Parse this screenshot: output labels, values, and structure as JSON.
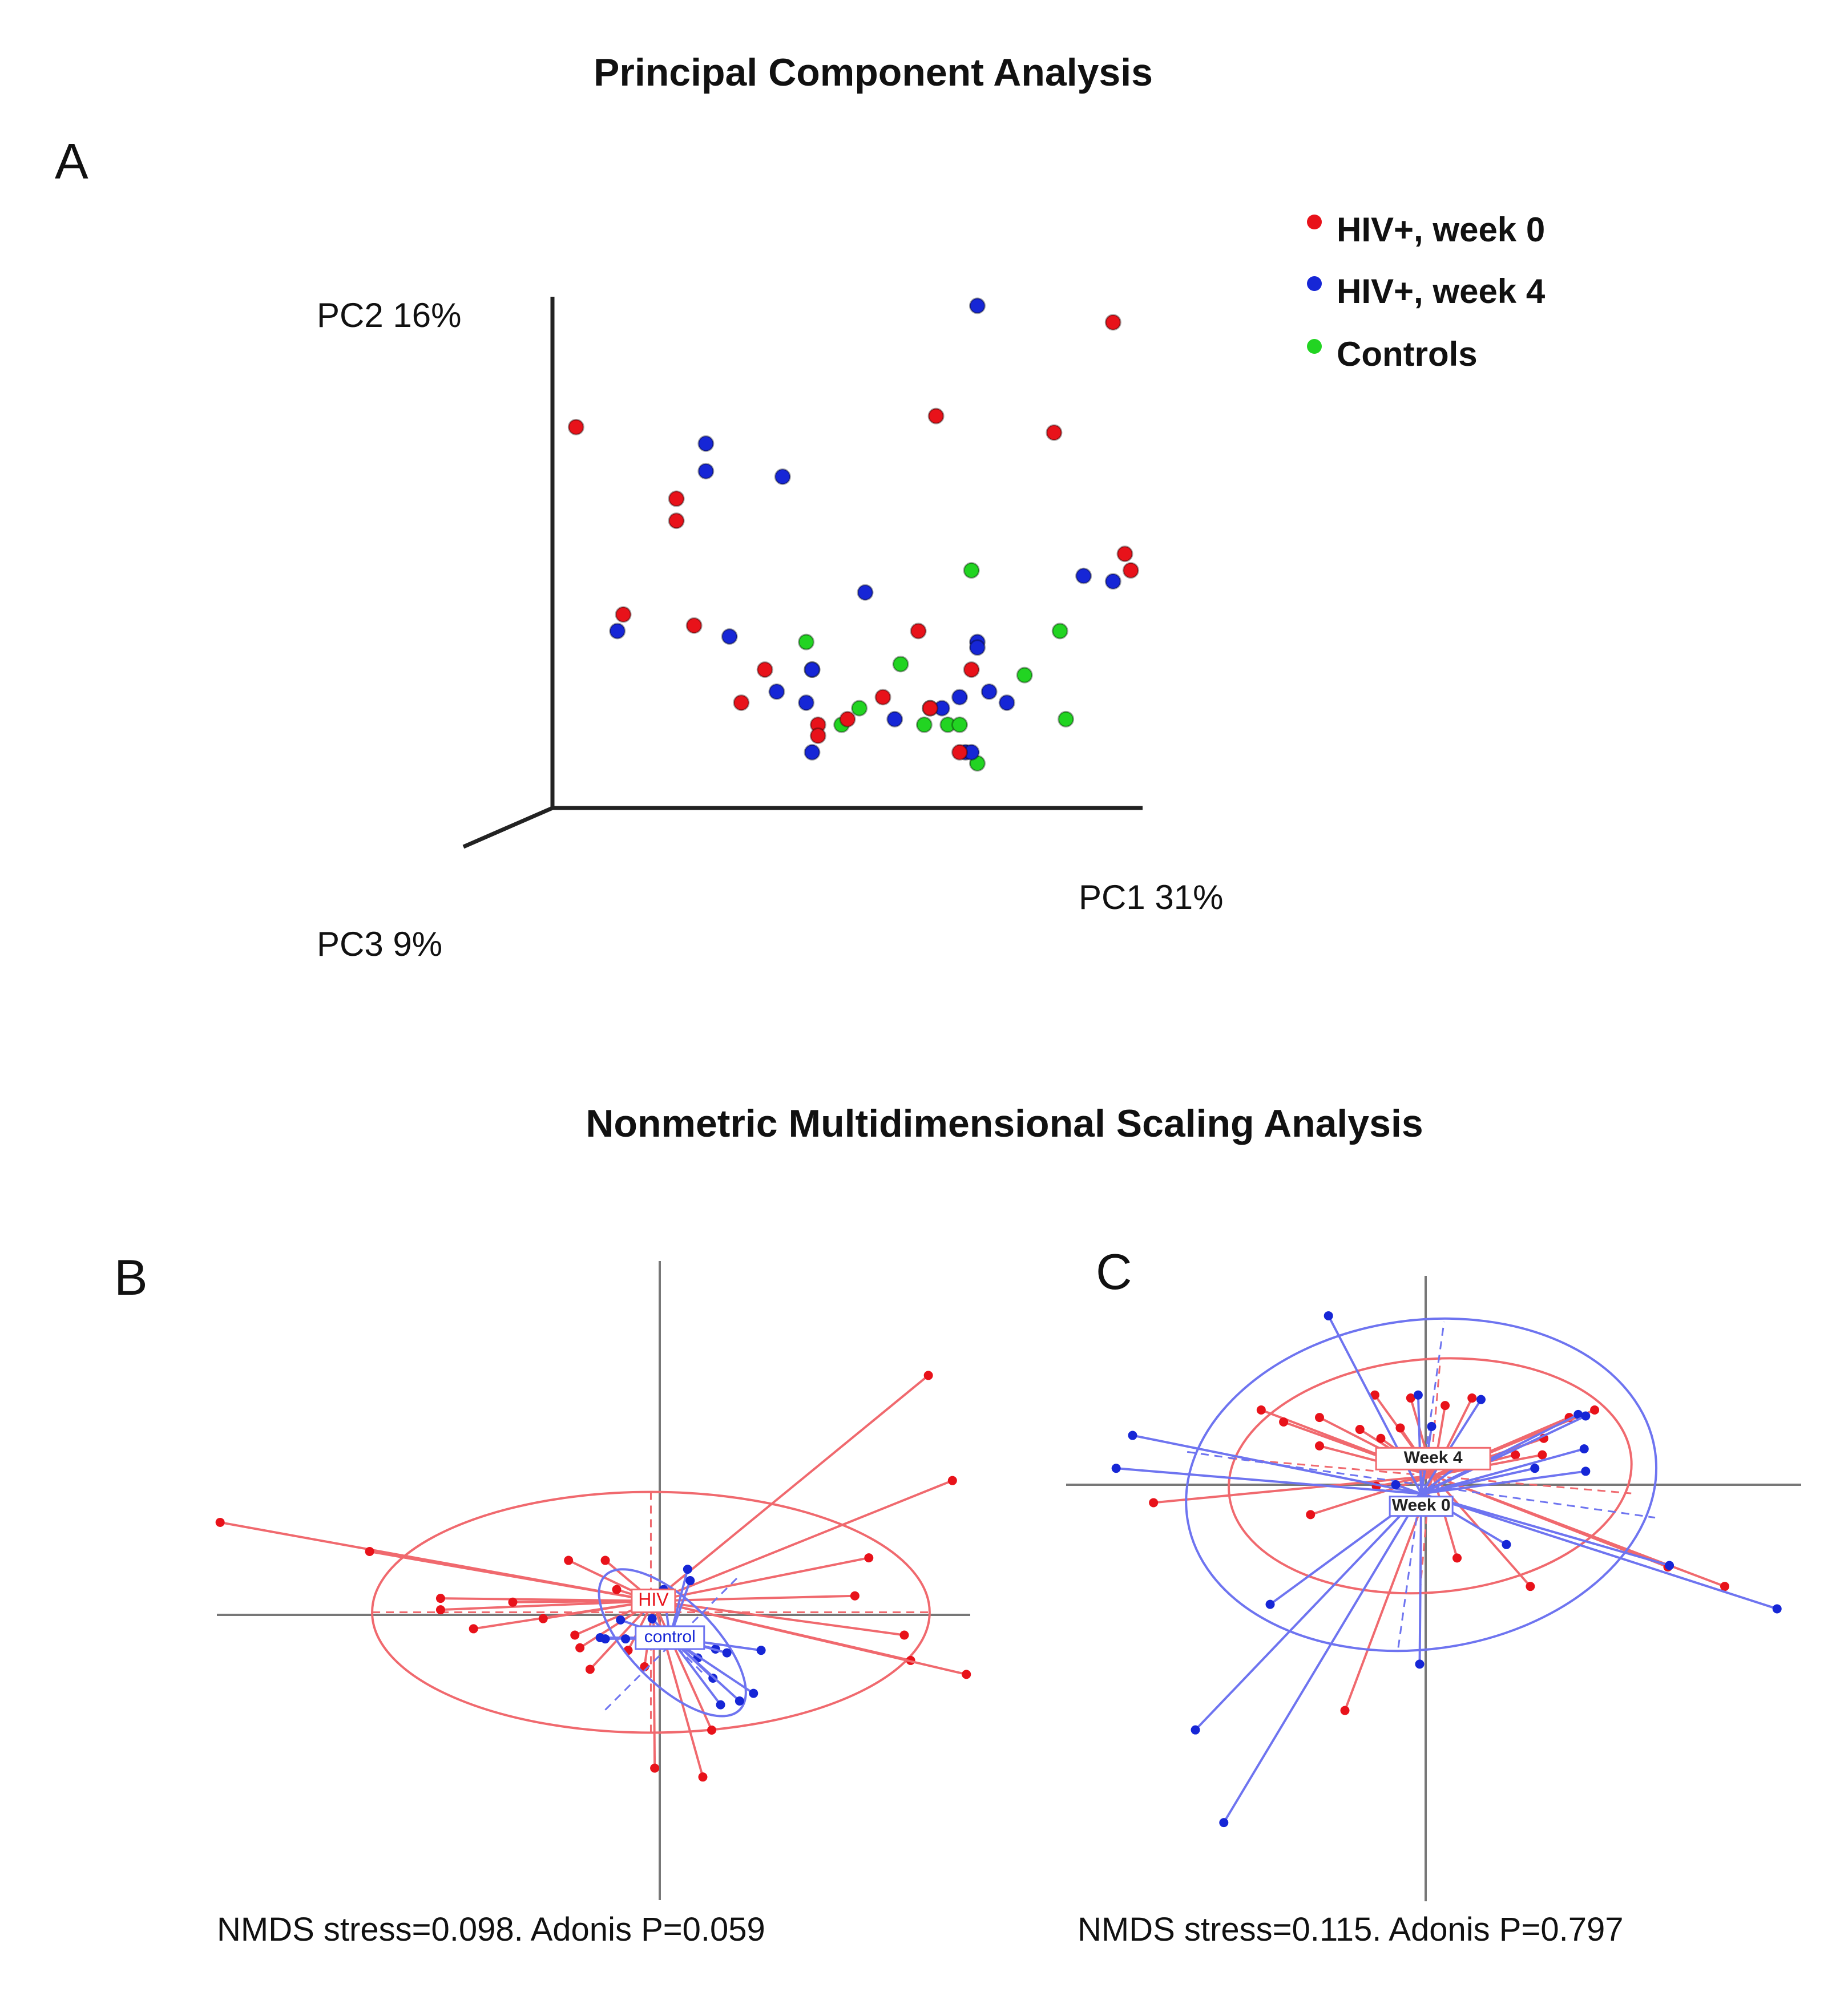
{
  "pca_title": "Principal Component Analysis",
  "nmds_title": "Nonmetric Multidimensional Scaling Analysis",
  "colors": {
    "red": "#e8121a",
    "blue": "#1626d6",
    "green": "#22d422",
    "red_line": "#f0696e",
    "blue_line": "#6e74f0"
  },
  "chart_data": [
    {
      "panel": "A",
      "type": "scatter",
      "projection": "3d",
      "title": "Principal Component Analysis",
      "axes": {
        "x": "PC1 31%",
        "y": "PC2 16%",
        "z": "PC3 9%"
      },
      "legend": [
        {
          "label": "HIV+, week 0",
          "color": "#e8121a"
        },
        {
          "label": "HIV+, week 4",
          "color": "#1626d6"
        },
        {
          "label": "Controls",
          "color": "#22d422"
        }
      ],
      "series": [
        {
          "name": "HIV+, week 0",
          "color": "#e8121a",
          "points": [
            [
              0.04,
              0.66
            ],
            [
              0.12,
              0.32
            ],
            [
              0.21,
              0.53
            ],
            [
              0.21,
              0.49
            ],
            [
              0.24,
              0.3
            ],
            [
              0.32,
              0.16
            ],
            [
              0.36,
              0.22
            ],
            [
              0.45,
              0.12
            ],
            [
              0.45,
              0.1
            ],
            [
              0.5,
              0.13
            ],
            [
              0.56,
              0.17
            ],
            [
              0.62,
              0.29
            ],
            [
              0.65,
              0.68
            ],
            [
              0.64,
              0.15
            ],
            [
              0.69,
              0.07
            ],
            [
              0.71,
              0.22
            ],
            [
              0.85,
              0.65
            ],
            [
              0.95,
              0.85
            ],
            [
              0.97,
              0.43
            ],
            [
              0.98,
              0.4
            ],
            [
              0.85,
              1.04
            ]
          ]
        },
        {
          "name": "HIV+, week 4",
          "color": "#1626d6",
          "points": [
            [
              0.11,
              0.29
            ],
            [
              0.26,
              0.63
            ],
            [
              0.26,
              0.58
            ],
            [
              0.3,
              0.28
            ],
            [
              0.38,
              0.18
            ],
            [
              0.39,
              0.57
            ],
            [
              0.44,
              0.22
            ],
            [
              0.43,
              0.16
            ],
            [
              0.44,
              0.07
            ],
            [
              0.53,
              0.36
            ],
            [
              0.58,
              0.13
            ],
            [
              0.66,
              0.15
            ],
            [
              0.69,
              0.17
            ],
            [
              0.72,
              0.27
            ],
            [
              0.72,
              0.26
            ],
            [
              0.74,
              0.18
            ],
            [
              0.77,
              0.16
            ],
            [
              0.7,
              0.07
            ],
            [
              0.71,
              0.07
            ],
            [
              0.72,
              0.88
            ],
            [
              0.9,
              0.39
            ],
            [
              0.95,
              0.38
            ]
          ]
        },
        {
          "name": "Controls",
          "color": "#22d422",
          "points": [
            [
              0.43,
              0.27
            ],
            [
              0.44,
              0.22
            ],
            [
              0.49,
              0.12
            ],
            [
              0.52,
              0.15
            ],
            [
              0.59,
              0.23
            ],
            [
              0.64,
              0.15
            ],
            [
              0.63,
              0.12
            ],
            [
              0.67,
              0.12
            ],
            [
              0.69,
              0.12
            ],
            [
              0.72,
              0.05
            ],
            [
              0.71,
              0.4
            ],
            [
              0.8,
              0.21
            ],
            [
              0.86,
              0.29
            ],
            [
              0.87,
              0.13
            ]
          ]
        }
      ]
    },
    {
      "panel": "B",
      "type": "scatter",
      "method": "NMDS ordination",
      "groups": [
        {
          "name": "HIV",
          "label": "HIV",
          "color": "#e8121a",
          "centroid": [
            -0.05,
            0.11
          ],
          "ellipse": {
            "rx": 2.2,
            "ry": 0.95,
            "rotation": 0,
            "cx": -0.07,
            "cy": 0.02
          },
          "points": [
            [
              -3.47,
              0.73
            ],
            [
              -2.29,
              0.5
            ],
            [
              -1.73,
              0.13
            ],
            [
              -1.73,
              0.04
            ],
            [
              -1.47,
              -0.11
            ],
            [
              -1.16,
              0.1
            ],
            [
              -0.92,
              -0.03
            ],
            [
              -0.72,
              0.43
            ],
            [
              -0.43,
              0.43
            ],
            [
              -0.67,
              -0.16
            ],
            [
              -0.63,
              -0.26
            ],
            [
              -0.34,
              0.2
            ],
            [
              -0.55,
              -0.43
            ],
            [
              -0.25,
              -0.28
            ],
            [
              -0.12,
              -0.41
            ],
            [
              -0.04,
              -1.21
            ],
            [
              0.41,
              -0.91
            ],
            [
              0.34,
              -1.28
            ],
            [
              1.65,
              0.45
            ],
            [
              1.54,
              0.15
            ],
            [
              1.93,
              -0.16
            ],
            [
              1.98,
              -0.36
            ],
            [
              2.42,
              -0.47
            ],
            [
              2.31,
              1.06
            ],
            [
              2.12,
              1.89
            ]
          ]
        },
        {
          "name": "control",
          "label": "control",
          "color": "#1626d6",
          "centroid": [
            0.08,
            -0.18
          ],
          "ellipse": {
            "rx": 0.75,
            "ry": 0.33,
            "rotation": 45,
            "cx": 0.1,
            "cy": -0.22
          },
          "points": [
            [
              -0.47,
              -0.18
            ],
            [
              -0.43,
              -0.19
            ],
            [
              -0.27,
              -0.19
            ],
            [
              -0.31,
              -0.04
            ],
            [
              -0.06,
              -0.03
            ],
            [
              0.03,
              0.2
            ],
            [
              0.22,
              0.36
            ],
            [
              0.24,
              0.27
            ],
            [
              0.3,
              -0.34
            ],
            [
              0.42,
              -0.5
            ],
            [
              0.44,
              -0.27
            ],
            [
              0.53,
              -0.3
            ],
            [
              0.48,
              -0.71
            ],
            [
              0.63,
              -0.68
            ],
            [
              0.74,
              -0.62
            ],
            [
              0.8,
              -0.28
            ]
          ]
        }
      ],
      "annotation": "NMDS stress=0.098. Adonis P=0.059"
    },
    {
      "panel": "C",
      "type": "scatter",
      "method": "NMDS ordination",
      "groups": [
        {
          "name": "Week 4",
          "label": "Week 4",
          "color": "#e8121a",
          "centroid": [
            0.05,
            0.06
          ],
          "ellipse": {
            "rx": 1.35,
            "ry": 0.78,
            "rotation": -5,
            "cx": 0.03,
            "cy": 0.06
          },
          "points": [
            [
              -1.82,
              -0.12
            ],
            [
              -1.1,
              0.5
            ],
            [
              -0.95,
              0.42
            ],
            [
              -0.71,
              0.45
            ],
            [
              -0.71,
              0.26
            ],
            [
              -0.44,
              0.37
            ],
            [
              -0.34,
              0.6
            ],
            [
              -0.3,
              0.31
            ],
            [
              -0.17,
              0.38
            ],
            [
              -0.1,
              0.58
            ],
            [
              0.13,
              0.53
            ],
            [
              0.31,
              0.58
            ],
            [
              0.39,
              0.14
            ],
            [
              0.6,
              0.2
            ],
            [
              0.78,
              0.2
            ],
            [
              0.79,
              0.31
            ],
            [
              0.96,
              0.45
            ],
            [
              1.13,
              0.5
            ],
            [
              -0.77,
              -0.2
            ],
            [
              0.21,
              -0.49
            ],
            [
              0.7,
              -0.68
            ],
            [
              -0.54,
              -1.51
            ],
            [
              1.62,
              -0.55
            ],
            [
              2.0,
              -0.68
            ],
            [
              -0.33,
              -0.01
            ]
          ]
        },
        {
          "name": "Week 0",
          "label": "Week 0",
          "color": "#1626d6",
          "centroid": [
            -0.03,
            -0.06
          ],
          "ellipse": {
            "rx": 1.58,
            "ry": 1.1,
            "rotation": -8,
            "cx": -0.03,
            "cy": 0.0
          },
          "points": [
            [
              -1.96,
              0.33
            ],
            [
              -2.07,
              0.11
            ],
            [
              -0.65,
              1.13
            ],
            [
              -0.05,
              0.6
            ],
            [
              0.04,
              0.39
            ],
            [
              0.37,
              0.57
            ],
            [
              1.02,
              0.47
            ],
            [
              1.07,
              0.46
            ],
            [
              1.06,
              0.24
            ],
            [
              1.07,
              0.09
            ],
            [
              0.73,
              0.11
            ],
            [
              0.31,
              0.2
            ],
            [
              0.54,
              -0.4
            ],
            [
              1.63,
              -0.54
            ],
            [
              2.35,
              -0.83
            ],
            [
              -1.04,
              -0.8
            ],
            [
              -1.54,
              -1.64
            ],
            [
              -1.35,
              -2.26
            ],
            [
              -0.04,
              -1.2
            ],
            [
              -0.2,
              0.0
            ]
          ]
        }
      ],
      "annotation": "NMDS stress=0.115. Adonis P=0.797"
    }
  ],
  "labels": {
    "A": "A",
    "B": "B",
    "C": "C"
  }
}
